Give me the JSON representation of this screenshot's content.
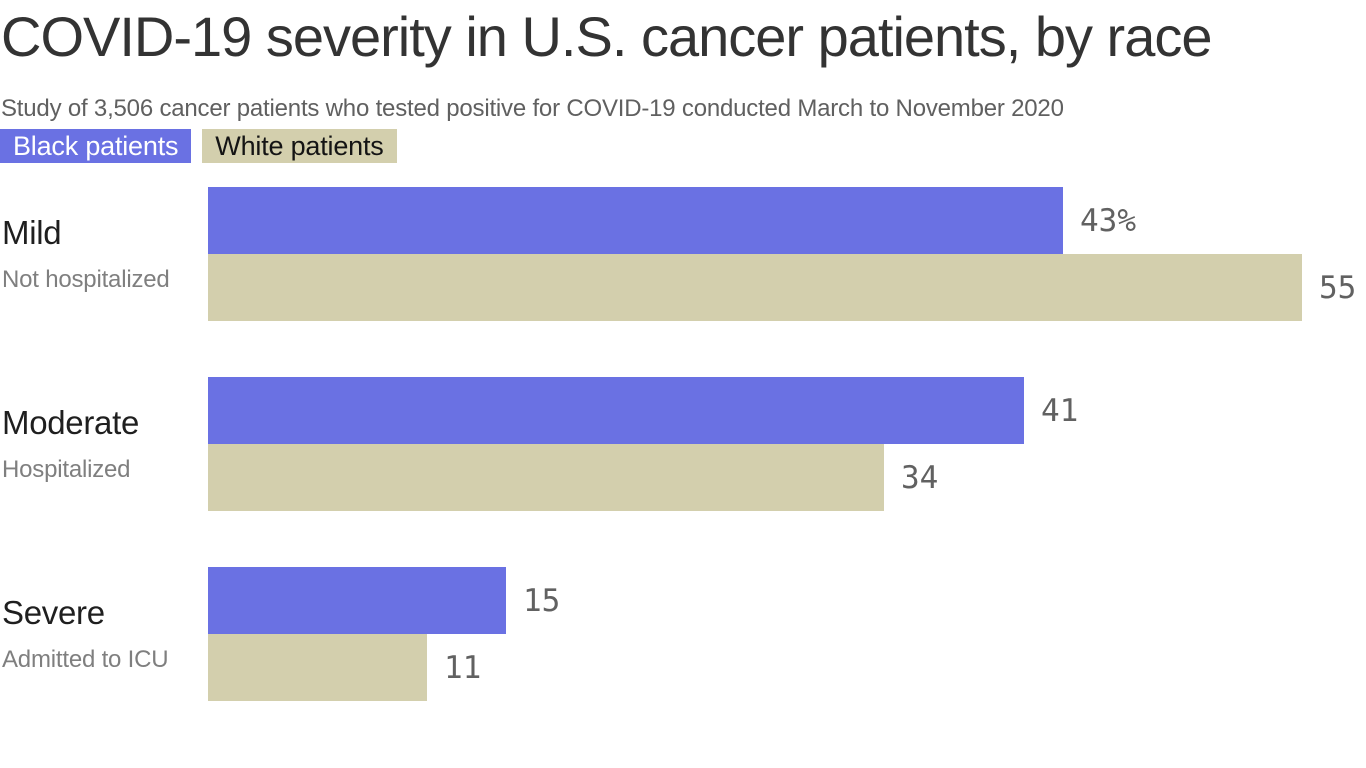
{
  "chart_data": {
    "type": "bar",
    "orientation": "horizontal",
    "title": "COVID-19 severity in U.S. cancer patients, by race",
    "subtitle": "Study of 3,506 cancer patients who tested positive for COVID-19 conducted March to November 2020",
    "categories": [
      "Mild",
      "Moderate",
      "Severe"
    ],
    "category_sublabels": [
      "Not hospitalized",
      "Hospitalized",
      "Admitted to ICU"
    ],
    "series": [
      {
        "name": "Black patients",
        "color": "#6a71e3",
        "values": [
          43,
          41,
          15
        ],
        "display_labels": [
          "43%",
          "41",
          "15"
        ]
      },
      {
        "name": "White patients",
        "color": "#d3cfad",
        "values": [
          55,
          34,
          11
        ],
        "display_labels": [
          "55",
          "34",
          "11"
        ]
      }
    ],
    "value_unit": "percent",
    "xlim": [
      0,
      55
    ],
    "grid": false,
    "legend_position": "top-left",
    "value_label_position": "outside-end",
    "colors": {
      "title_text": "#333333",
      "subtitle_text": "#606060",
      "category_text": "#1f1f1f",
      "sublabel_text": "#7f7f7f",
      "value_text": "#616161",
      "background": "#ffffff"
    }
  }
}
